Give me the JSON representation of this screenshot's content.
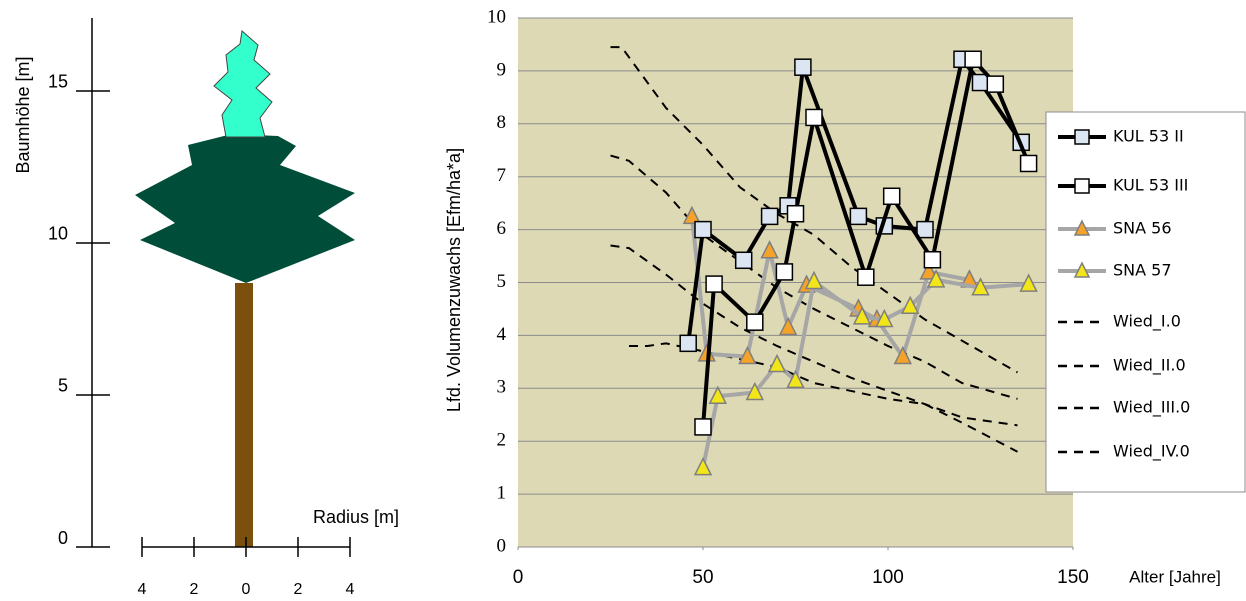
{
  "chart_data": [
    {
      "type": "tree",
      "ylabel": "Baumhöhe [m]",
      "xlabel": "Radius [m]",
      "ylim": [
        0,
        17.4
      ],
      "yticks": [
        0,
        5,
        10,
        15
      ],
      "xlim": [
        -4,
        4
      ],
      "xticks": [
        {
          "value": -4,
          "label": "4"
        },
        {
          "value": -2,
          "label": "2"
        },
        0,
        2,
        4
      ]
    },
    {
      "type": "line",
      "ylabel": "Lfd. Volumenzuwachs [Efm/ha*a]",
      "xlabel": "Alter [Jahre]",
      "xlim": [
        0,
        150
      ],
      "xticks": [
        0,
        50,
        100,
        150
      ],
      "ylim": [
        0,
        10
      ],
      "yticks": [
        0,
        1,
        2,
        3,
        4,
        5,
        6,
        7,
        8,
        9,
        10
      ],
      "grid": true,
      "legend": "right",
      "background": "#ddd9b5",
      "series": [
        {
          "name": "KUL 53 II",
          "color": "#000000",
          "marker": "square",
          "marker_color": "#dce6f2",
          "x": [
            46,
            50,
            61,
            68,
            73,
            77,
            92,
            99,
            110,
            120,
            125,
            136
          ],
          "values": [
            3.85,
            6.0,
            5.42,
            6.25,
            6.45,
            9.07,
            6.25,
            6.07,
            6.0,
            9.22,
            8.78,
            7.65
          ]
        },
        {
          "name": "KUL 53 III",
          "color": "#000000",
          "marker": "square",
          "marker_color": "#ffffff",
          "x": [
            50,
            53,
            64,
            72,
            75,
            80,
            94,
            101,
            112,
            123,
            129,
            138
          ],
          "values": [
            2.27,
            4.97,
            4.25,
            5.2,
            6.3,
            8.12,
            5.1,
            6.63,
            5.43,
            9.22,
            8.75,
            7.25
          ]
        },
        {
          "name": "SNA 56",
          "color": "#a6a6a6",
          "marker": "triangle",
          "marker_color": "#f4a22a",
          "x": [
            47,
            51,
            62,
            68,
            73,
            78,
            92,
            97,
            104,
            111,
            122
          ],
          "values": [
            6.25,
            3.65,
            3.6,
            5.6,
            4.15,
            4.95,
            4.5,
            4.3,
            3.6,
            5.2,
            5.05
          ]
        },
        {
          "name": "SNA 57",
          "color": "#a6a6a6",
          "marker": "triangle",
          "marker_color": "#f2e51a",
          "x": [
            50,
            54,
            64,
            70,
            75,
            80,
            93,
            99,
            106,
            113,
            125,
            138
          ],
          "values": [
            1.5,
            2.85,
            2.92,
            3.45,
            3.15,
            5.02,
            4.35,
            4.3,
            4.55,
            5.05,
            4.9,
            4.97
          ]
        },
        {
          "name": "Wied_I.0",
          "color": "#000000",
          "dashed": true,
          "x": [
            25,
            28,
            40,
            50,
            60,
            70,
            80,
            90,
            100,
            110,
            120,
            135
          ],
          "values": [
            9.45,
            9.45,
            8.3,
            7.6,
            6.8,
            6.3,
            5.9,
            5.3,
            4.8,
            4.3,
            3.9,
            3.3
          ]
        },
        {
          "name": "Wied_II.0",
          "color": "#000000",
          "dashed": true,
          "x": [
            25,
            30,
            40,
            50,
            60,
            70,
            80,
            90,
            100,
            110,
            120,
            135
          ],
          "values": [
            7.4,
            7.3,
            6.7,
            5.9,
            5.4,
            4.9,
            4.5,
            4.15,
            3.8,
            3.5,
            3.1,
            2.8
          ]
        },
        {
          "name": "Wied_III.0",
          "color": "#000000",
          "dashed": true,
          "x": [
            25,
            30,
            40,
            50,
            60,
            70,
            80,
            90,
            100,
            110,
            120,
            135
          ],
          "values": [
            5.7,
            5.65,
            5.15,
            4.6,
            4.15,
            3.8,
            3.5,
            3.2,
            2.95,
            2.7,
            2.45,
            2.3
          ]
        },
        {
          "name": "Wied_IV.0",
          "color": "#000000",
          "dashed": true,
          "x": [
            30,
            35,
            40,
            50,
            60,
            70,
            80,
            90,
            100,
            110,
            120,
            135
          ],
          "values": [
            3.8,
            3.8,
            3.85,
            3.7,
            3.55,
            3.4,
            3.1,
            2.95,
            2.8,
            2.7,
            2.35,
            1.8
          ]
        }
      ]
    }
  ]
}
